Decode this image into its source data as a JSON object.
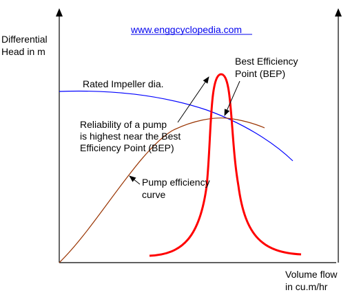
{
  "website": "www.enggcyclopedia.com",
  "y_axis_label": [
    "Differential",
    "Head in m"
  ],
  "x_axis_label": [
    "Volume flow",
    "in cu.m/hr"
  ],
  "curves": {
    "impeller": {
      "label": "Rated Impeller dia.",
      "color": "#0000ff"
    },
    "efficiency": {
      "label": [
        "Pump efficiency",
        "curve"
      ],
      "color": "#993300"
    },
    "reliability": {
      "color": "#ff0000"
    }
  },
  "bep_label": [
    "Best Efficiency",
    "Point (BEP)"
  ],
  "reliability_note": [
    "Reliability of a pump",
    "is highest near the Best",
    "Efficiency Point (BEP)"
  ]
}
